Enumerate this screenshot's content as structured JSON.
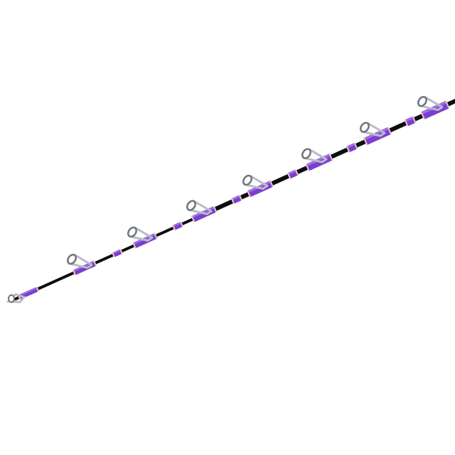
{
  "image": {
    "subject": "fishing-rod",
    "colors": {
      "background": "#ffffff",
      "blank": "#0d0d12",
      "wrap": "#7a3fd0",
      "wrap_highlight": "#b68cf0",
      "trim": "#e9c9c0",
      "guide_metal": "#b8bcc4"
    }
  }
}
